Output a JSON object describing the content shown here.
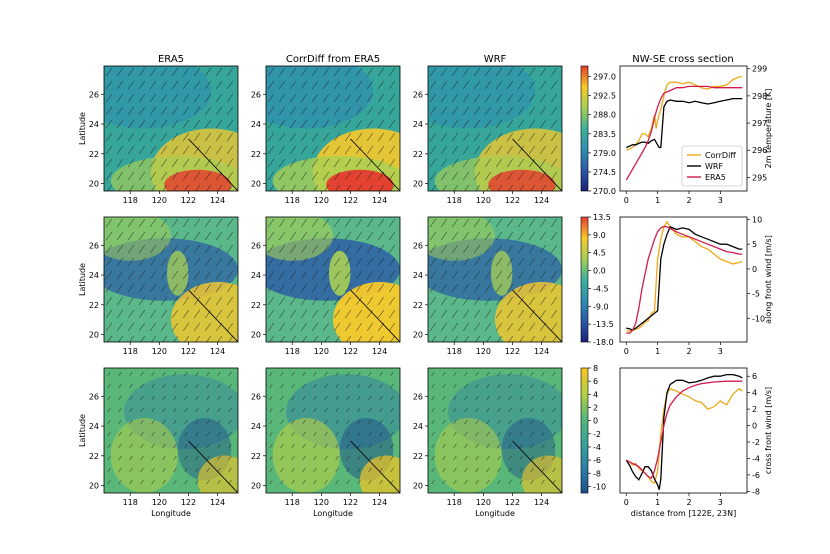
{
  "figure": {
    "column_titles": [
      "ERA5",
      "CorrDiff from ERA5",
      "WRF",
      "NW-SE cross section"
    ],
    "map_axis": {
      "xlabel": "Longitude",
      "ylabel": "Latitude",
      "xticks": [
        "118",
        "120",
        "122",
        "124"
      ],
      "yticks": [
        "20",
        "22",
        "24",
        "26"
      ]
    },
    "colorbars": [
      {
        "ticks": [
          "297.0",
          "292.5",
          "288.0",
          "283.5",
          "279.0",
          "274.5",
          "270.0"
        ],
        "min": 270.0,
        "max": 299.5,
        "colors": [
          "#1b1e7c",
          "#2a5aa8",
          "#2f8fb0",
          "#3fb09a",
          "#a7cf55",
          "#f7c92b",
          "#e63a2e"
        ]
      },
      {
        "ticks": [
          "13.5",
          "9.0",
          "4.5",
          "0.0",
          "-4.5",
          "-9.0",
          "-13.5",
          "-18.0"
        ],
        "min": -18.0,
        "max": 13.5,
        "colors": [
          "#1b1e7c",
          "#2a5aa8",
          "#2f8fb0",
          "#3fb09a",
          "#a7cf55",
          "#f7c92b",
          "#e63a2e"
        ]
      },
      {
        "ticks": [
          "8",
          "6",
          "4",
          "2",
          "0",
          "-2",
          "-4",
          "-6",
          "-8",
          "-10"
        ],
        "min": -11.0,
        "max": 8.0,
        "colors": [
          "#1d4f8c",
          "#2f7fa6",
          "#36a39a",
          "#59b879",
          "#b9cf45",
          "#f5c623"
        ]
      }
    ]
  },
  "chart_data": [
    {
      "type": "line",
      "title": "NW-SE cross section",
      "ylabel": "2m temperature [K]",
      "xlim": [
        -0.2,
        3.85
      ],
      "ylim": [
        294.5,
        299.1
      ],
      "yticks": [
        "299",
        "298",
        "297",
        "296",
        "295"
      ],
      "xticks": [
        "0",
        "1",
        "2",
        "3"
      ],
      "legend": {
        "placement": "lower-right",
        "entries": [
          "CorrDiff",
          "WRF",
          "ERA5"
        ]
      },
      "series": [
        {
          "name": "CorrDiff",
          "color": "#f0a818",
          "x": [
            0,
            0.1,
            0.2,
            0.3,
            0.4,
            0.5,
            0.6,
            0.7,
            0.8,
            0.9,
            0.95,
            1.0,
            1.1,
            1.2,
            1.3,
            1.4,
            1.6,
            1.8,
            2.0,
            2.2,
            2.4,
            2.6,
            2.8,
            3.0,
            3.2,
            3.4,
            3.6,
            3.7
          ],
          "y": [
            296.0,
            296.05,
            296.1,
            296.2,
            296.35,
            296.6,
            296.6,
            296.5,
            296.8,
            297.3,
            296.8,
            297.1,
            297.5,
            298.0,
            298.4,
            298.5,
            298.5,
            298.45,
            298.5,
            298.4,
            298.3,
            298.25,
            298.35,
            298.35,
            298.4,
            298.6,
            298.7,
            298.7
          ]
        },
        {
          "name": "WRF",
          "color": "#000000",
          "x": [
            0,
            0.1,
            0.2,
            0.3,
            0.4,
            0.5,
            0.6,
            0.7,
            0.8,
            0.9,
            1.0,
            1.05,
            1.1,
            1.2,
            1.3,
            1.4,
            1.6,
            1.8,
            2.0,
            2.2,
            2.4,
            2.6,
            2.8,
            3.0,
            3.2,
            3.4,
            3.6,
            3.7
          ],
          "y": [
            296.1,
            296.15,
            296.2,
            296.2,
            296.25,
            296.3,
            296.3,
            296.25,
            296.35,
            296.4,
            296.2,
            296.1,
            296.1,
            297.6,
            297.8,
            297.85,
            297.8,
            297.8,
            297.75,
            297.8,
            297.75,
            297.7,
            297.75,
            297.8,
            297.85,
            297.9,
            297.9,
            297.9
          ]
        },
        {
          "name": "ERA5",
          "color": "#d01c4b",
          "x": [
            0,
            0.1,
            0.2,
            0.3,
            0.4,
            0.5,
            0.6,
            0.7,
            0.8,
            0.9,
            1.0,
            1.1,
            1.2,
            1.4,
            1.6,
            1.8,
            2.0,
            2.2,
            2.4,
            2.6,
            2.8,
            3.0,
            3.2,
            3.4,
            3.6,
            3.7
          ],
          "y": [
            294.9,
            295.1,
            295.3,
            295.5,
            295.7,
            295.9,
            296.1,
            296.35,
            296.7,
            297.2,
            297.6,
            297.9,
            298.1,
            298.2,
            298.3,
            298.3,
            298.35,
            298.35,
            298.35,
            298.35,
            298.3,
            298.3,
            298.3,
            298.3,
            298.3,
            298.3
          ]
        }
      ]
    },
    {
      "type": "line",
      "ylabel": "along front wind [m/s]",
      "xlim": [
        -0.2,
        3.85
      ],
      "ylim": [
        -14.8,
        10.5
      ],
      "yticks": [
        "10",
        "5",
        "0",
        "-5",
        "-10"
      ],
      "xticks": [
        "0",
        "1",
        "2",
        "3"
      ],
      "series": [
        {
          "name": "CorrDiff",
          "color": "#f0a818",
          "x": [
            0,
            0.1,
            0.2,
            0.3,
            0.4,
            0.5,
            0.6,
            0.7,
            0.8,
            0.9,
            1.0,
            1.1,
            1.2,
            1.3,
            1.4,
            1.6,
            1.8,
            2.0,
            2.2,
            2.4,
            2.6,
            2.8,
            3.0,
            3.2,
            3.4,
            3.6,
            3.7
          ],
          "y": [
            -12.5,
            -12.6,
            -12.4,
            -12.2,
            -12.0,
            -11.5,
            -10.8,
            -10.5,
            -9.0,
            -8.5,
            2.0,
            6.0,
            8.5,
            9.5,
            8.5,
            7.0,
            6.5,
            6.5,
            5.5,
            4.5,
            4.0,
            3.0,
            2.0,
            1.5,
            1.0,
            1.3,
            1.5
          ]
        },
        {
          "name": "WRF",
          "color": "#000000",
          "x": [
            0,
            0.1,
            0.2,
            0.3,
            0.4,
            0.5,
            0.6,
            0.7,
            0.8,
            0.9,
            1.0,
            1.1,
            1.2,
            1.3,
            1.4,
            1.6,
            1.8,
            2.0,
            2.2,
            2.4,
            2.6,
            2.8,
            3.0,
            3.2,
            3.4,
            3.6,
            3.7
          ],
          "y": [
            -12.0,
            -12.1,
            -12.4,
            -12.0,
            -11.5,
            -11.0,
            -10.5,
            -10.0,
            -9.5,
            -9.0,
            -8.5,
            2.0,
            5.0,
            7.0,
            8.5,
            8.0,
            8.3,
            8.0,
            7.0,
            6.5,
            6.0,
            5.5,
            5.0,
            5.0,
            4.5,
            4.0,
            4.0
          ]
        },
        {
          "name": "ERA5",
          "color": "#d01c4b",
          "x": [
            0,
            0.1,
            0.2,
            0.3,
            0.4,
            0.5,
            0.6,
            0.7,
            0.8,
            0.9,
            1.0,
            1.1,
            1.2,
            1.3,
            1.4,
            1.6,
            1.8,
            2.0,
            2.2,
            2.4,
            2.6,
            2.8,
            3.0,
            3.2,
            3.4,
            3.6,
            3.7
          ],
          "y": [
            -13.0,
            -13.0,
            -12.5,
            -11.0,
            -8.0,
            -4.0,
            -1.0,
            2.0,
            4.0,
            6.0,
            7.5,
            8.3,
            8.6,
            8.5,
            8.2,
            7.5,
            7.0,
            6.5,
            6.0,
            5.5,
            5.0,
            4.5,
            4.0,
            3.5,
            3.3,
            3.0,
            3.0
          ]
        }
      ]
    },
    {
      "type": "line",
      "ylabel": "cross front wind [m/s]",
      "xlabel": "distance from [122E, 23N]",
      "xlim": [
        -0.2,
        3.85
      ],
      "ylim": [
        -8.2,
        7.0
      ],
      "yticks": [
        "6",
        "4",
        "2",
        "0",
        "-2",
        "-4",
        "-6",
        "-8"
      ],
      "xticks": [
        "0",
        "1",
        "2",
        "3"
      ],
      "series": [
        {
          "name": "CorrDiff",
          "color": "#f0a818",
          "x": [
            0,
            0.1,
            0.2,
            0.3,
            0.4,
            0.5,
            0.6,
            0.7,
            0.8,
            0.9,
            1.0,
            1.1,
            1.2,
            1.3,
            1.4,
            1.6,
            1.8,
            2.0,
            2.2,
            2.4,
            2.6,
            2.8,
            3.0,
            3.2,
            3.4,
            3.6,
            3.7
          ],
          "y": [
            -4.2,
            -4.4,
            -4.8,
            -4.6,
            -5.2,
            -5.5,
            -5.8,
            -6.2,
            -6.8,
            -7.0,
            -5.5,
            -1.0,
            2.0,
            3.8,
            4.5,
            4.2,
            3.8,
            3.5,
            3.0,
            2.8,
            2.0,
            2.3,
            3.0,
            2.5,
            3.8,
            4.5,
            4.2
          ]
        },
        {
          "name": "WRF",
          "color": "#000000",
          "x": [
            0,
            0.1,
            0.2,
            0.3,
            0.4,
            0.5,
            0.6,
            0.7,
            0.8,
            0.9,
            1.0,
            1.05,
            1.1,
            1.2,
            1.3,
            1.4,
            1.6,
            1.8,
            2.0,
            2.2,
            2.4,
            2.6,
            2.8,
            3.0,
            3.2,
            3.4,
            3.6,
            3.7
          ],
          "y": [
            -4.2,
            -4.8,
            -5.6,
            -6.2,
            -6.6,
            -5.8,
            -5.0,
            -5.0,
            -5.5,
            -6.5,
            -7.2,
            -7.8,
            -6.5,
            1.0,
            4.0,
            5.0,
            5.5,
            5.5,
            5.2,
            5.3,
            5.5,
            5.8,
            6.0,
            6.0,
            6.2,
            6.2,
            6.0,
            5.8
          ]
        },
        {
          "name": "ERA5",
          "color": "#d01c4b",
          "x": [
            0,
            0.1,
            0.2,
            0.3,
            0.4,
            0.5,
            0.6,
            0.7,
            0.8,
            0.9,
            1.0,
            1.1,
            1.2,
            1.3,
            1.4,
            1.6,
            1.8,
            2.0,
            2.2,
            2.4,
            2.6,
            2.8,
            3.0,
            3.2,
            3.4,
            3.6,
            3.7
          ],
          "y": [
            -4.2,
            -4.4,
            -4.6,
            -4.8,
            -5.0,
            -5.4,
            -5.8,
            -6.2,
            -6.4,
            -5.5,
            -4.0,
            -2.0,
            0.0,
            1.5,
            2.5,
            3.5,
            4.2,
            4.6,
            4.9,
            5.1,
            5.2,
            5.3,
            5.35,
            5.4,
            5.4,
            5.4,
            5.4
          ]
        }
      ]
    }
  ]
}
